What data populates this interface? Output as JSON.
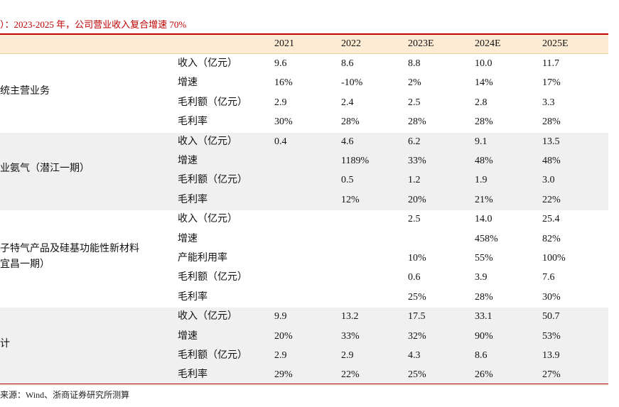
{
  "title": "）：2023-2025 年，公司营业收入复合增速 70%",
  "columns": [
    "2021",
    "2022",
    "2023E",
    "2024E",
    "2025E"
  ],
  "sections": [
    {
      "name": [
        "统主营业务"
      ],
      "band": "white",
      "rows": [
        {
          "label": "收入（亿元）",
          "values": [
            "9.6",
            "8.6",
            "8.8",
            "10.0",
            "11.7"
          ]
        },
        {
          "label": "增速",
          "values": [
            "16%",
            "-10%",
            "2%",
            "14%",
            "17%"
          ]
        },
        {
          "label": "毛利额（亿元）",
          "values": [
            "2.9",
            "2.4",
            "2.5",
            "2.8",
            "3.3"
          ]
        },
        {
          "label": "毛利率",
          "values": [
            "30%",
            "28%",
            "28%",
            "28%",
            "28%"
          ]
        }
      ]
    },
    {
      "name": [
        "业氨气（潜江一期）"
      ],
      "band": "grey",
      "rows": [
        {
          "label": "收入（亿元）",
          "values": [
            "0.4",
            "4.6",
            "6.2",
            "9.1",
            "13.5"
          ]
        },
        {
          "label": "增速",
          "values": [
            "",
            "1189%",
            "33%",
            "48%",
            "48%"
          ]
        },
        {
          "label": "毛利额（亿元）",
          "values": [
            "",
            "0.5",
            "1.2",
            "1.9",
            "3.0"
          ]
        },
        {
          "label": "毛利率",
          "values": [
            "",
            "12%",
            "20%",
            "21%",
            "22%"
          ]
        }
      ]
    },
    {
      "name": [
        "子特气产品及硅基功能性新材料",
        "宜昌一期）"
      ],
      "band": "white",
      "rows": [
        {
          "label": "收入（亿元）",
          "values": [
            "",
            "",
            "2.5",
            "14.0",
            "25.4"
          ]
        },
        {
          "label": "增速",
          "values": [
            "",
            "",
            "",
            "458%",
            "82%"
          ]
        },
        {
          "label": "产能利用率",
          "values": [
            "",
            "",
            "10%",
            "55%",
            "100%"
          ]
        },
        {
          "label": "毛利额（亿元）",
          "values": [
            "",
            "",
            "0.6",
            "3.9",
            "7.6"
          ]
        },
        {
          "label": "毛利率",
          "values": [
            "",
            "",
            "25%",
            "28%",
            "30%"
          ]
        }
      ]
    },
    {
      "name": [
        "计"
      ],
      "band": "grey",
      "rows": [
        {
          "label": "收入（亿元）",
          "values": [
            "9.9",
            "13.2",
            "17.5",
            "33.1",
            "50.7"
          ]
        },
        {
          "label": "增速",
          "values": [
            "20%",
            "33%",
            "32%",
            "90%",
            "53%"
          ]
        },
        {
          "label": "毛利额（亿元）",
          "values": [
            "2.9",
            "2.9",
            "4.3",
            "8.6",
            "13.9"
          ]
        },
        {
          "label": "毛利率",
          "values": [
            "29%",
            "22%",
            "25%",
            "26%",
            "27%"
          ]
        }
      ]
    }
  ],
  "source": "来源：Wind、浙商证券研究所测算"
}
